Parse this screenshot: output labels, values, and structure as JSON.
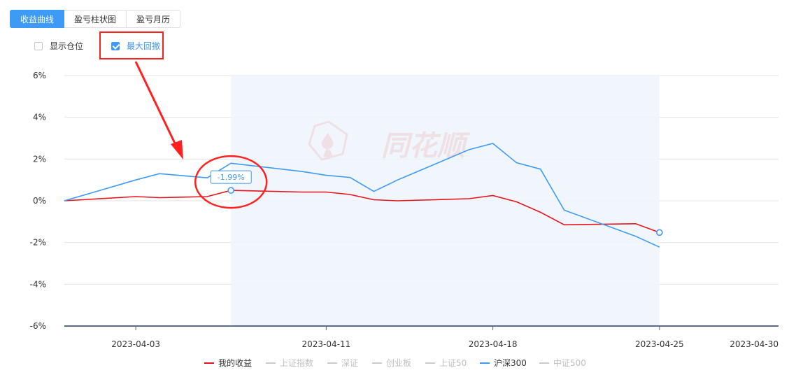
{
  "tabs": [
    {
      "label": "收益曲线",
      "active": true
    },
    {
      "label": "盈亏柱状图",
      "active": false
    },
    {
      "label": "盈亏月历",
      "active": false
    }
  ],
  "options": {
    "show_position": {
      "label": "显示仓位",
      "checked": false
    },
    "max_drawdown": {
      "label": "最大回撤",
      "checked": true
    }
  },
  "watermark": "同花顺",
  "chart_data": {
    "type": "line",
    "y_ticks": [
      "6%",
      "4%",
      "2%",
      "0%",
      "-2%",
      "-4%",
      "-6%"
    ],
    "ylim": [
      -6,
      6
    ],
    "x_ticks": [
      "2023-04-03",
      "2023-04-11",
      "2023-04-18",
      "2023-04-25",
      "2023-04-30"
    ],
    "x": [
      "2023-03-31",
      "2023-04-03",
      "2023-04-04",
      "2023-04-06",
      "2023-04-07",
      "2023-04-10",
      "2023-04-11",
      "2023-04-12",
      "2023-04-13",
      "2023-04-14",
      "2023-04-17",
      "2023-04-18",
      "2023-04-19",
      "2023-04-20",
      "2023-04-21",
      "2023-04-24",
      "2023-04-25"
    ],
    "series": [
      {
        "name": "我的收益",
        "color": "#e8141c",
        "values": [
          0.0,
          0.2,
          0.15,
          0.2,
          0.5,
          0.42,
          0.42,
          0.3,
          0.05,
          0.0,
          0.1,
          0.25,
          -0.05,
          -0.55,
          -1.15,
          -1.1,
          -1.52
        ]
      },
      {
        "name": "沪深300",
        "color": "#3d9af5",
        "values": [
          0.0,
          1.0,
          1.3,
          1.1,
          1.8,
          1.4,
          1.22,
          1.12,
          0.45,
          1.0,
          2.45,
          2.75,
          1.82,
          1.52,
          -0.45,
          -1.7,
          -2.22
        ]
      }
    ],
    "drawdown": {
      "start": "2023-04-07",
      "end": "2023-04-25",
      "label": "-1.99%"
    },
    "legend": [
      {
        "name": "我的收益",
        "color": "#e8141c",
        "active": true
      },
      {
        "name": "上证指数",
        "color": "#cccccc",
        "active": false
      },
      {
        "name": "深证",
        "color": "#cccccc",
        "active": false
      },
      {
        "name": "创业板",
        "color": "#cccccc",
        "active": false
      },
      {
        "name": "上证50",
        "color": "#cccccc",
        "active": false
      },
      {
        "name": "沪深300",
        "color": "#3d9af5",
        "active": true
      },
      {
        "name": "中证500",
        "color": "#cccccc",
        "active": false
      }
    ],
    "grid": true,
    "legend_position": "bottom"
  }
}
